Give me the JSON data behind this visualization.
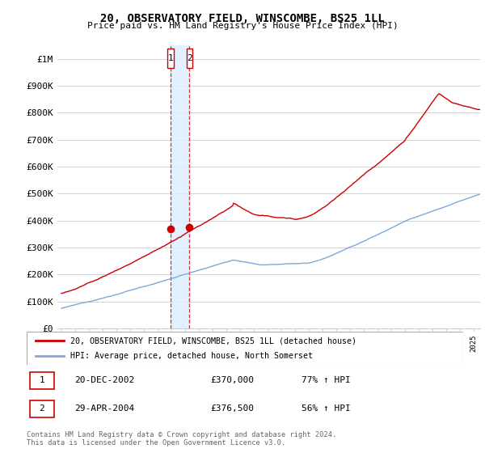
{
  "title": "20, OBSERVATORY FIELD, WINSCOMBE, BS25 1LL",
  "subtitle": "Price paid vs. HM Land Registry's House Price Index (HPI)",
  "ylabel_ticks": [
    "£0",
    "£100K",
    "£200K",
    "£300K",
    "£400K",
    "£500K",
    "£600K",
    "£700K",
    "£800K",
    "£900K",
    "£1M"
  ],
  "ytick_values": [
    0,
    100000,
    200000,
    300000,
    400000,
    500000,
    600000,
    700000,
    800000,
    900000,
    1000000
  ],
  "ylim": [
    0,
    1050000
  ],
  "xlim_start": 1994.7,
  "xlim_end": 2025.5,
  "sale1_x": 2002.97,
  "sale1_y": 370000,
  "sale2_x": 2004.33,
  "sale2_y": 376500,
  "legend_line1": "20, OBSERVATORY FIELD, WINSCOMBE, BS25 1LL (detached house)",
  "legend_line2": "HPI: Average price, detached house, North Somerset",
  "table_row1": [
    "1",
    "20-DEC-2002",
    "£370,000",
    "77% ↑ HPI"
  ],
  "table_row2": [
    "2",
    "29-APR-2004",
    "£376,500",
    "56% ↑ HPI"
  ],
  "footnote1": "Contains HM Land Registry data © Crown copyright and database right 2024.",
  "footnote2": "This data is licensed under the Open Government Licence v3.0.",
  "line_color_red": "#cc0000",
  "line_color_blue": "#7aaadd",
  "highlight_box_color": "#ddeeff",
  "sale_marker_color": "#cc0000",
  "vline_color": "#cc0000",
  "grid_color": "#cccccc",
  "background_color": "#ffffff",
  "border_color": "#cc0000"
}
